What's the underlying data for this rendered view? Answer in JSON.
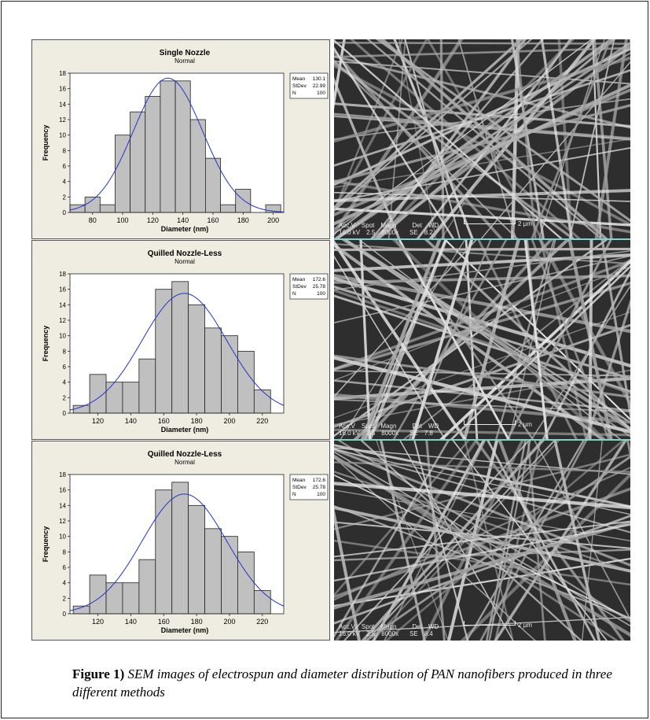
{
  "figure": {
    "caption_label": "Figure 1)",
    "caption_text": "SEM images of electrospun and diameter distribution of PAN nanofibers produced in three different methods"
  },
  "panels": [
    {
      "sem": {
        "acc_label": "Acc.V",
        "spot_label": "Spot",
        "magn_label": "Magn",
        "det_label": "Det",
        "wd_label": "WD",
        "acc": "16.0 kV",
        "spot": "2.5",
        "magn": "8000x",
        "det": "SE",
        "wd": "8.2",
        "scale": "2 µm"
      }
    },
    {
      "sem": {
        "acc_label": "Acc.V",
        "spot_label": "Spot",
        "magn_label": "Magn",
        "det_label": "Det",
        "wd_label": "WD",
        "acc": "16.0 kV",
        "spot": "2.5",
        "magn": "8000x",
        "det": "SE",
        "wd": "7.8",
        "scale": "2 µm"
      }
    },
    {
      "sem": {
        "acc_label": "Acc.V",
        "spot_label": "Spot",
        "magn_label": "Magn",
        "det_label": "Det",
        "wd_label": "WD",
        "acc": "16.0 kV",
        "spot": "2.5",
        "magn": "8000x",
        "det": "SE",
        "wd": "8.4",
        "scale": "2 µm"
      }
    }
  ],
  "chart_data": [
    {
      "type": "bar",
      "title": "Single Nozzle",
      "subtitle": "Normal",
      "xlabel": "Diameter (nm)",
      "ylabel": "Frequency",
      "bin_width": 10,
      "bins_start": [
        65,
        75,
        85,
        95,
        105,
        115,
        125,
        135,
        145,
        155,
        165,
        175,
        185,
        195
      ],
      "values": [
        1,
        2,
        1,
        10,
        13,
        15,
        17,
        17,
        12,
        7,
        1,
        3,
        0,
        1
      ],
      "xlim": [
        65,
        207
      ],
      "ylim": [
        0,
        18
      ],
      "xticks": [
        80,
        100,
        120,
        140,
        160,
        180,
        200
      ],
      "yticks": [
        0,
        2,
        4,
        6,
        8,
        10,
        12,
        14,
        16,
        18
      ],
      "fit": {
        "mean": 130.1,
        "stdev": 22.99,
        "n": 100
      },
      "stats_labels": [
        "Mean",
        "StDev",
        "N"
      ],
      "stats_values": [
        "130.1",
        "22.99",
        "100"
      ],
      "colors": {
        "bar": "#c0c0c0",
        "curve": "#2233cc"
      }
    },
    {
      "type": "bar",
      "title": "Quilled Nozzle-Less",
      "subtitle": "Normal",
      "xlabel": "Diameter (nm)",
      "ylabel": "Frequency",
      "bin_width": 10,
      "bins_start": [
        105,
        115,
        125,
        135,
        145,
        155,
        165,
        175,
        185,
        195,
        205,
        215
      ],
      "values": [
        1,
        5,
        4,
        4,
        7,
        16,
        17,
        14,
        11,
        10,
        8,
        3
      ],
      "xlim": [
        103,
        233
      ],
      "ylim": [
        0,
        18
      ],
      "xticks": [
        120,
        140,
        160,
        180,
        200,
        220
      ],
      "yticks": [
        0,
        2,
        4,
        6,
        8,
        10,
        12,
        14,
        16,
        18
      ],
      "fit": {
        "mean": 172.6,
        "stdev": 25.78,
        "n": 100
      },
      "stats_labels": [
        "Mean",
        "StDev",
        "N"
      ],
      "stats_values": [
        "172.6",
        "25.78",
        "100"
      ],
      "colors": {
        "bar": "#c0c0c0",
        "curve": "#2233cc"
      }
    },
    {
      "type": "bar",
      "title": "Quilled Nozzle-Less",
      "subtitle": "Normal",
      "xlabel": "Diameter (nm)",
      "ylabel": "Frequency",
      "bin_width": 10,
      "bins_start": [
        105,
        115,
        125,
        135,
        145,
        155,
        165,
        175,
        185,
        195,
        205,
        215
      ],
      "values": [
        1,
        5,
        4,
        4,
        7,
        16,
        17,
        14,
        11,
        10,
        8,
        3
      ],
      "xlim": [
        103,
        233
      ],
      "ylim": [
        0,
        18
      ],
      "xticks": [
        120,
        140,
        160,
        180,
        200,
        220
      ],
      "yticks": [
        0,
        2,
        4,
        6,
        8,
        10,
        12,
        14,
        16,
        18
      ],
      "fit": {
        "mean": 172.6,
        "stdev": 25.78,
        "n": 100
      },
      "stats_labels": [
        "Mean",
        "StDev",
        "N"
      ],
      "stats_values": [
        "172.6",
        "25.78",
        "100"
      ],
      "colors": {
        "bar": "#c0c0c0",
        "curve": "#2233cc"
      }
    }
  ]
}
